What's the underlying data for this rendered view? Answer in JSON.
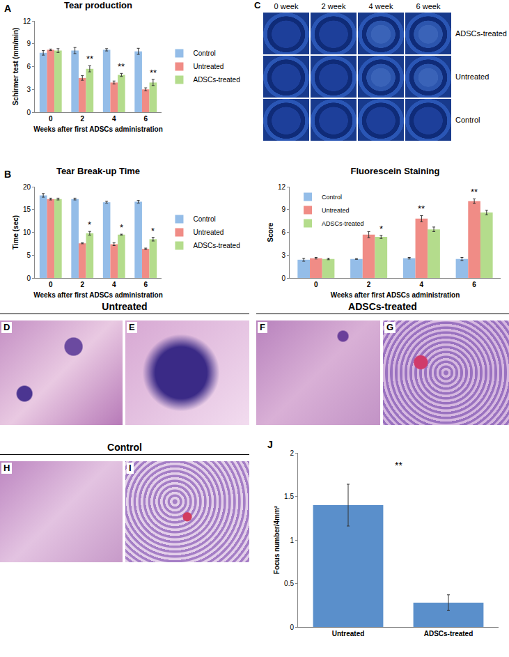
{
  "chart_data": [
    {
      "panel": "A",
      "type": "bar",
      "title": "Tear production",
      "x_label": "Weeks after first ADSCs administration",
      "y_label": "Schirmer test (mm/min)",
      "categories": [
        "0",
        "2",
        "4",
        "6"
      ],
      "series": [
        {
          "name": "Control",
          "color": "#94bde8",
          "values": [
            7.8,
            8.1,
            8.2,
            8.0
          ],
          "errors": [
            0.3,
            0.4,
            0.15,
            0.4
          ]
        },
        {
          "name": "Untreated",
          "color": "#f08c86",
          "values": [
            8.2,
            4.5,
            3.9,
            3.0
          ],
          "errors": [
            0.1,
            0.3,
            0.2,
            0.2
          ]
        },
        {
          "name": "ADSCs-treated",
          "color": "#b4dc8c",
          "values": [
            8.1,
            5.7,
            4.9,
            3.9
          ],
          "errors": [
            0.25,
            0.4,
            0.2,
            0.4
          ]
        }
      ],
      "ylim": [
        0,
        12
      ],
      "yticks": [
        0,
        3,
        6,
        9,
        12
      ],
      "grid": false,
      "legend": "right",
      "annotations": [
        {
          "text": "**",
          "category": "2",
          "series": "ADSCs-treated"
        },
        {
          "text": "**",
          "category": "4",
          "series": "ADSCs-treated"
        },
        {
          "text": "**",
          "category": "6",
          "series": "ADSCs-treated"
        }
      ]
    },
    {
      "panel": "B",
      "type": "bar",
      "title": "Tear Break-up Time",
      "x_label": "Weeks after first ADSCs administration",
      "y_label": "Time (sec)",
      "categories": [
        "0",
        "2",
        "4",
        "6"
      ],
      "series": [
        {
          "name": "Control",
          "color": "#94bde8",
          "values": [
            18.1,
            17.3,
            16.6,
            16.7
          ],
          "errors": [
            0.4,
            0.2,
            0.2,
            0.3
          ]
        },
        {
          "name": "Untreated",
          "color": "#f08c86",
          "values": [
            17.3,
            7.6,
            7.4,
            6.4
          ],
          "errors": [
            0.2,
            0.1,
            0.3,
            0.15
          ]
        },
        {
          "name": "ADSCs-treated",
          "color": "#b4dc8c",
          "values": [
            17.3,
            9.8,
            9.5,
            8.5
          ],
          "errors": [
            0.2,
            0.4,
            0.1,
            0.4
          ]
        }
      ],
      "ylim": [
        0,
        20
      ],
      "yticks": [
        0,
        5,
        10,
        15,
        20
      ],
      "grid": false,
      "legend": "right",
      "annotations": [
        {
          "text": "*",
          "category": "2",
          "series": "ADSCs-treated"
        },
        {
          "text": "*",
          "category": "4",
          "series": "ADSCs-treated"
        },
        {
          "text": "*",
          "category": "6",
          "series": "ADSCs-treated"
        }
      ]
    },
    {
      "type": "bar",
      "title": "Fluorescein Staining",
      "x_label": "Weeks after first ADSCs administration",
      "y_label": "Score",
      "categories": [
        "0",
        "2",
        "4",
        "6"
      ],
      "series": [
        {
          "name": "Control",
          "color": "#94bde8",
          "values": [
            2.4,
            2.5,
            2.6,
            2.5
          ],
          "errors": [
            0.2,
            0.05,
            0.1,
            0.2
          ]
        },
        {
          "name": "Untreated",
          "color": "#f08c86",
          "values": [
            2.6,
            5.7,
            7.8,
            10.1
          ],
          "errors": [
            0.1,
            0.4,
            0.4,
            0.3
          ]
        },
        {
          "name": "ADSCs-treated",
          "color": "#b4dc8c",
          "values": [
            2.5,
            5.4,
            6.4,
            8.6
          ],
          "errors": [
            0.1,
            0.2,
            0.3,
            0.3
          ]
        }
      ],
      "ylim": [
        0,
        12
      ],
      "yticks": [
        0,
        3,
        6,
        9,
        12
      ],
      "grid": false,
      "legend": "upper left",
      "annotations": [
        {
          "text": "*",
          "category": "2",
          "series": "ADSCs-treated"
        },
        {
          "text": "**",
          "category": "4",
          "series": "Untreated"
        },
        {
          "text": "**",
          "category": "6",
          "series": "Untreated"
        }
      ]
    },
    {
      "panel": "J",
      "type": "bar",
      "y_label": "Focus number/4mm²",
      "categories": [
        "Untreated",
        "ADSCs-treated"
      ],
      "series": [
        {
          "color": "#5a8fcb",
          "values": [
            1.4,
            0.28
          ],
          "errors": [
            0.24,
            0.09
          ]
        }
      ],
      "ylim": [
        0,
        2
      ],
      "yticks": [
        0,
        0.5,
        1,
        1.5,
        2
      ],
      "grid": false,
      "annotations": [
        {
          "text": "**"
        }
      ]
    }
  ],
  "photos": {
    "panel": "C",
    "columns": [
      "0 week",
      "2 week",
      "4 week",
      "6 week"
    ],
    "rows": [
      "ADSCs-treated",
      "Untreated",
      "Control"
    ]
  },
  "histology": [
    {
      "title": "Untreated",
      "panels": [
        "D",
        "E"
      ]
    },
    {
      "title": "ADSCs-treated",
      "panels": [
        "F",
        "G"
      ]
    },
    {
      "title": "Control",
      "panels": [
        "H",
        "I"
      ]
    }
  ]
}
